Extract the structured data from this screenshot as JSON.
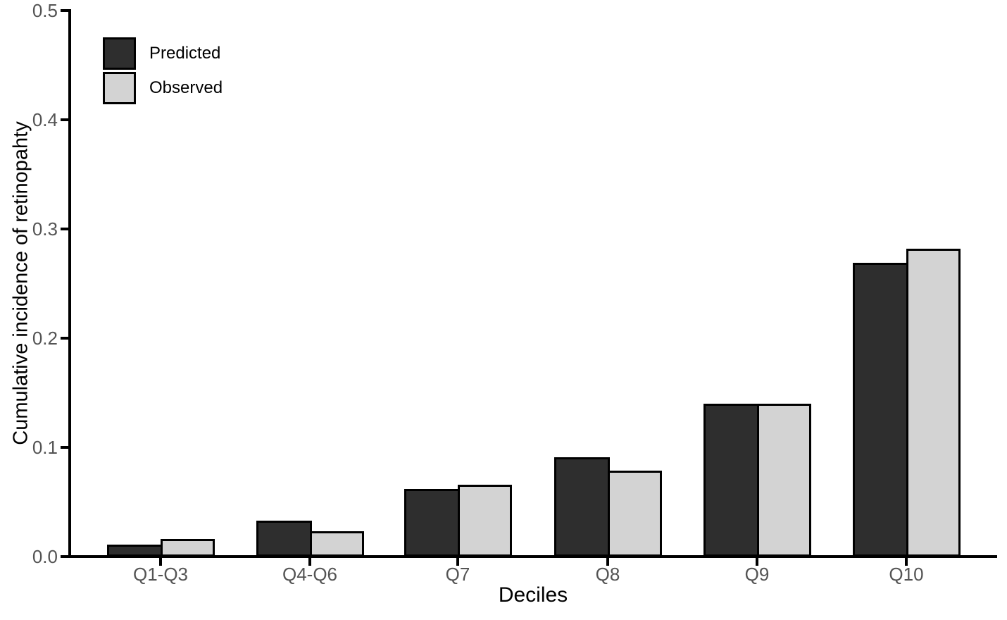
{
  "chart_data": {
    "type": "bar",
    "title": "",
    "xlabel": "Deciles",
    "ylabel": "Cumulative incidence of retinopahty",
    "categories": [
      "Q1-Q3",
      "Q4-Q6",
      "Q7",
      "Q8",
      "Q9",
      "Q10"
    ],
    "series": [
      {
        "name": "Predicted",
        "color": "#2e2e2e",
        "values": [
          0.011,
          0.033,
          0.062,
          0.091,
          0.14,
          0.269
        ]
      },
      {
        "name": "Observed",
        "color": "#d3d3d3",
        "values": [
          0.016,
          0.023,
          0.066,
          0.079,
          0.14,
          0.282
        ]
      }
    ],
    "ylim": [
      0.0,
      0.5
    ],
    "yticks": [
      "0.0",
      "0.1",
      "0.2",
      "0.3",
      "0.4",
      "0.5"
    ],
    "grid": false,
    "legend_position": "top-left",
    "colors": {
      "axis": "#000000",
      "bar_border": "#000000",
      "tick_label": "#545454",
      "axis_title": "#000000",
      "background": "#ffffff"
    }
  }
}
